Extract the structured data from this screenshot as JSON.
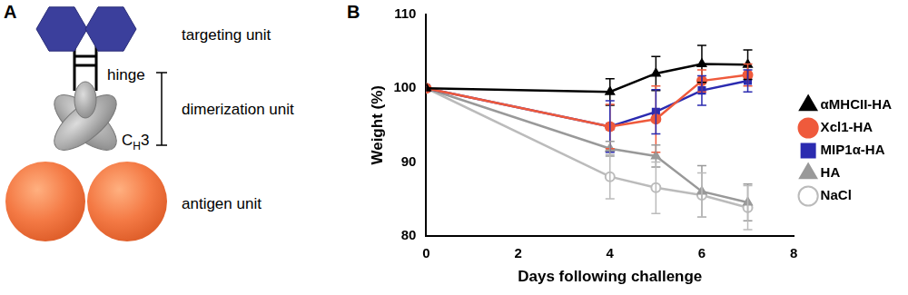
{
  "panel_labels": [
    "A",
    "B"
  ],
  "diagram": {
    "targeting": "targeting unit",
    "hinge": "hinge",
    "dimerization": "dimerization unit",
    "domain": {
      "base": "C",
      "sub": "H",
      "after": "3"
    },
    "antigen": "antigen unit"
  },
  "chart_data": {
    "type": "line",
    "x_label": "Days following challenge",
    "y_label": "Weight (%)",
    "xlim": [
      0,
      8
    ],
    "xticks": [
      0,
      2,
      4,
      6,
      8
    ],
    "ylim": [
      80,
      110
    ],
    "yticks": [
      80,
      90,
      100,
      110
    ],
    "grid": false,
    "legend": "right",
    "x": [
      0,
      4,
      5,
      6,
      7
    ],
    "series": [
      {
        "name": "αMHCII-HA",
        "color": "#000000",
        "marker": "triangle",
        "values": [
          100,
          99.5,
          102,
          103.3,
          103.2
        ],
        "errors": [
          0,
          1.8,
          2.3,
          2.5,
          2
        ]
      },
      {
        "name": "Xcl1-HA",
        "color": "#ef5a3c",
        "marker": "circle",
        "values": [
          100,
          94.8,
          95.8,
          101,
          101.8
        ],
        "errors": [
          0,
          3,
          4.5,
          1.5,
          1.5
        ]
      },
      {
        "name": "MIP1α-HA",
        "color": "#2b2bb0",
        "marker": "square",
        "values": [
          100,
          94.8,
          96.8,
          99.7,
          101
        ],
        "errors": [
          0,
          3.5,
          3,
          2,
          1.5
        ]
      },
      {
        "name": "HA",
        "color": "#999999",
        "marker": "triangle",
        "values": [
          100,
          91.8,
          90.8,
          86,
          84.5
        ],
        "errors": [
          0,
          1,
          1.5,
          3.5,
          2.5
        ]
      },
      {
        "name": "NaCl",
        "color": "#bbbbbb",
        "marker": "circle_open",
        "values": [
          100,
          88,
          86.5,
          85.5,
          83.8
        ],
        "errors": [
          0,
          3,
          3.5,
          3,
          3
        ]
      }
    ]
  }
}
